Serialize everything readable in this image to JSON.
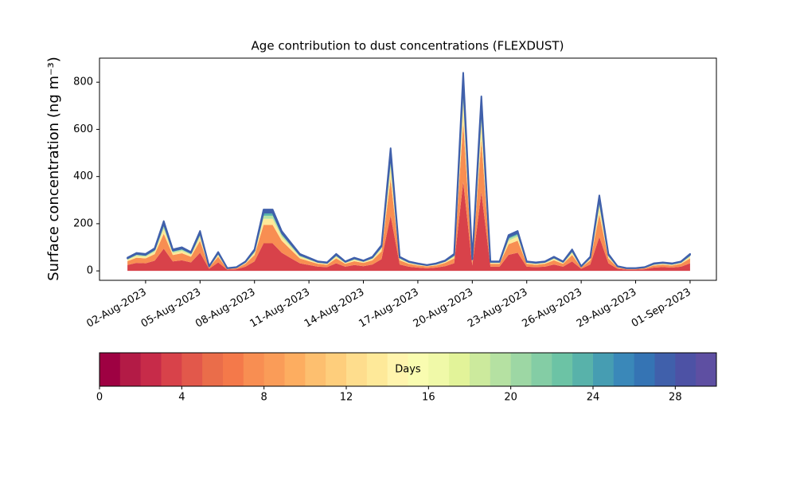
{
  "chart_data": {
    "type": "stacked_area",
    "title": "Age contribution to dust concentrations (FLEXDUST)",
    "y_label": "Surface concentration (ng m⁻³)",
    "x": [
      1,
      1.5,
      2,
      2.5,
      3,
      3.5,
      4,
      4.5,
      5,
      5.5,
      6,
      6.5,
      7,
      7.5,
      8,
      8.5,
      9,
      9.5,
      10,
      10.5,
      11,
      11.5,
      12,
      12.5,
      13,
      13.5,
      14,
      14.5,
      15,
      15.5,
      16,
      16.5,
      17,
      17.5,
      18,
      18.5,
      19,
      19.5,
      20,
      20.5,
      21,
      21.5,
      22,
      22.5,
      23,
      23.5,
      24,
      24.5,
      25,
      25.5,
      26,
      26.5,
      27,
      27.5,
      28,
      28.5,
      29,
      29.5,
      30,
      30.5,
      31,
      31.5,
      32
    ],
    "series": [
      {
        "color": "#d8424a",
        "values": [
          25,
          34,
          32,
          43,
          94,
          40,
          45,
          36,
          77,
          9,
          36,
          5,
          7,
          18,
          40,
          117,
          117,
          77,
          54,
          32,
          25,
          18,
          16,
          32,
          18,
          25,
          20,
          27,
          50,
          234,
          27,
          18,
          14,
          11,
          14,
          20,
          32,
          378,
          23,
          333,
          18,
          18,
          68,
          77,
          18,
          16,
          18,
          27,
          18,
          40,
          9,
          27,
          144,
          32,
          9,
          5,
          5,
          7,
          14,
          16,
          14,
          18,
          32
        ]
      },
      {
        "color": "#f88e52",
        "values": [
          16,
          22,
          21,
          28,
          63,
          27,
          30,
          24,
          51,
          6,
          24,
          3,
          4,
          12,
          27,
          78,
          78,
          51,
          36,
          21,
          16,
          12,
          10,
          21,
          12,
          16,
          14,
          18,
          33,
          156,
          18,
          12,
          9,
          8,
          9,
          14,
          21,
          252,
          15,
          222,
          12,
          12,
          45,
          51,
          12,
          10,
          12,
          18,
          12,
          27,
          6,
          18,
          96,
          21,
          6,
          3,
          3,
          4,
          9,
          10,
          9,
          12,
          21
        ]
      },
      {
        "color": "#fee999",
        "values": [
          6,
          8,
          7,
          10,
          21,
          9,
          10,
          8,
          17,
          2,
          8,
          1,
          2,
          4,
          9,
          26,
          26,
          17,
          12,
          7,
          6,
          4,
          4,
          7,
          4,
          6,
          4,
          6,
          11,
          52,
          6,
          4,
          3,
          3,
          3,
          4,
          7,
          84,
          5,
          74,
          4,
          4,
          15,
          17,
          4,
          4,
          4,
          6,
          4,
          9,
          2,
          6,
          32,
          7,
          2,
          1,
          1,
          2,
          3,
          4,
          3,
          4,
          7
        ]
      },
      {
        "color": "#b5e1a2",
        "values": [
          3,
          4,
          4,
          5,
          11,
          5,
          5,
          4,
          8,
          1,
          4,
          1,
          1,
          2,
          5,
          13,
          13,
          8,
          6,
          4,
          3,
          2,
          2,
          4,
          2,
          3,
          2,
          3,
          5,
          26,
          3,
          2,
          2,
          1,
          2,
          2,
          4,
          42,
          3,
          37,
          2,
          2,
          8,
          8,
          2,
          2,
          2,
          3,
          2,
          5,
          1,
          3,
          16,
          4,
          1,
          1,
          1,
          1,
          2,
          2,
          2,
          2,
          4
        ]
      },
      {
        "color": "#58b2aa",
        "values": [
          3,
          4,
          4,
          5,
          11,
          5,
          5,
          4,
          8,
          1,
          4,
          1,
          1,
          2,
          5,
          13,
          13,
          8,
          6,
          4,
          3,
          2,
          2,
          4,
          2,
          3,
          2,
          3,
          5,
          26,
          3,
          2,
          2,
          1,
          2,
          2,
          4,
          42,
          3,
          37,
          2,
          2,
          8,
          8,
          2,
          2,
          2,
          3,
          2,
          5,
          1,
          3,
          16,
          4,
          1,
          1,
          1,
          1,
          2,
          2,
          2,
          2,
          4
        ]
      },
      {
        "color": "#4060ab",
        "values": [
          3,
          4,
          4,
          5,
          11,
          5,
          5,
          4,
          8,
          1,
          4,
          1,
          1,
          2,
          5,
          13,
          13,
          8,
          6,
          4,
          3,
          2,
          2,
          4,
          2,
          3,
          2,
          3,
          5,
          26,
          3,
          2,
          2,
          1,
          2,
          2,
          4,
          42,
          3,
          37,
          2,
          2,
          8,
          8,
          2,
          2,
          2,
          3,
          2,
          5,
          1,
          3,
          16,
          4,
          1,
          1,
          1,
          1,
          2,
          2,
          2,
          2,
          4
        ]
      }
    ],
    "xlim": [
      -0.54,
      33.45
    ],
    "xticks": [
      {
        "value": 2,
        "label": "02-Aug-2023"
      },
      {
        "value": 5,
        "label": "05-Aug-2023"
      },
      {
        "value": 8,
        "label": "08-Aug-2023"
      },
      {
        "value": 11,
        "label": "11-Aug-2023"
      },
      {
        "value": 14,
        "label": "14-Aug-2023"
      },
      {
        "value": 17,
        "label": "17-Aug-2023"
      },
      {
        "value": 20,
        "label": "20-Aug-2023"
      },
      {
        "value": 23,
        "label": "23-Aug-2023"
      },
      {
        "value": 26,
        "label": "26-Aug-2023"
      },
      {
        "value": 29,
        "label": "29-Aug-2023"
      },
      {
        "value": 32,
        "label": "01-Sep-2023"
      }
    ],
    "ylim": [
      -40,
      902
    ],
    "yticks": [
      0,
      200,
      400,
      600,
      800
    ],
    "colorbar": {
      "label": "Days",
      "lim": [
        0,
        30
      ],
      "ticks": [
        0,
        4,
        8,
        12,
        16,
        20,
        24,
        28
      ],
      "colors": [
        "#9e0142",
        "#b31b46",
        "#c72b49",
        "#d8424a",
        "#e2584b",
        "#ea6d4a",
        "#f4794a",
        "#f88e52",
        "#fa9c58",
        "#fdad60",
        "#fdbf6f",
        "#fece7c",
        "#fedd8d",
        "#fee999",
        "#fff4ad",
        "#f9fcb0",
        "#f0f9a8",
        "#e2f399",
        "#ccea9d",
        "#b5e1a2",
        "#9dd7a4",
        "#84cda5",
        "#6cc3a5",
        "#58b2aa",
        "#469db2",
        "#3a88b9",
        "#3574b4",
        "#4060ab",
        "#4d52a5",
        "#5e4fa2"
      ]
    }
  }
}
